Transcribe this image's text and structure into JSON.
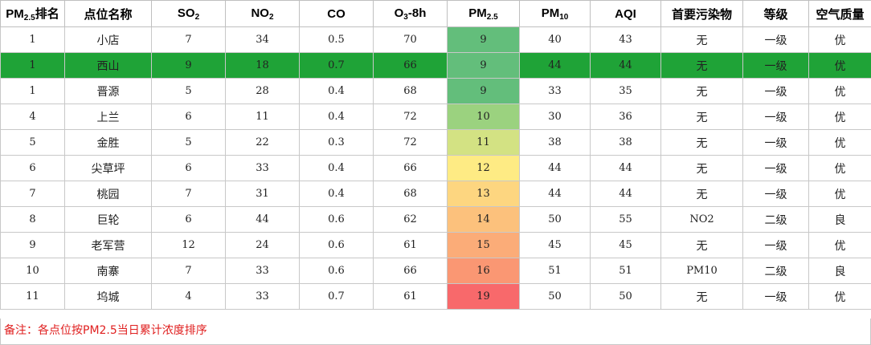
{
  "headers": {
    "rank": {
      "main": "PM",
      "sub": "2.5",
      "rest": "排名"
    },
    "site": "点位名称",
    "so2": {
      "main": "SO",
      "sub": "2"
    },
    "no2": {
      "main": "NO",
      "sub": "2"
    },
    "co": "CO",
    "o3": {
      "main": "O",
      "sub": "3",
      "rest": "-8h"
    },
    "pm25": {
      "main": "PM",
      "sub": "2.5"
    },
    "pm10": {
      "main": "PM",
      "sub": "10"
    },
    "aqi": "AQI",
    "primary": "首要污染物",
    "grade": "等级",
    "quality": "空气质量"
  },
  "rows": [
    {
      "rank": "1",
      "site": "小店",
      "so2": "7",
      "no2": "34",
      "co": "0.5",
      "o3": "70",
      "pm25": "9",
      "pm10": "40",
      "aqi": "43",
      "primary": "无",
      "grade": "一级",
      "quality": "优",
      "pm25_color": "#63be7b"
    },
    {
      "rank": "1",
      "site": "西山",
      "so2": "9",
      "no2": "18",
      "co": "0.7",
      "o3": "66",
      "pm25": "9",
      "pm10": "44",
      "aqi": "44",
      "primary": "无",
      "grade": "一级",
      "quality": "优",
      "pm25_color": "#63be7b",
      "highlight": true
    },
    {
      "rank": "1",
      "site": "晋源",
      "so2": "5",
      "no2": "28",
      "co": "0.4",
      "o3": "68",
      "pm25": "9",
      "pm10": "33",
      "aqi": "35",
      "primary": "无",
      "grade": "一级",
      "quality": "优",
      "pm25_color": "#63be7b"
    },
    {
      "rank": "4",
      "site": "上兰",
      "so2": "6",
      "no2": "11",
      "co": "0.4",
      "o3": "72",
      "pm25": "10",
      "pm10": "30",
      "aqi": "36",
      "primary": "无",
      "grade": "一级",
      "quality": "优",
      "pm25_color": "#9bd27f"
    },
    {
      "rank": "5",
      "site": "金胜",
      "so2": "5",
      "no2": "22",
      "co": "0.3",
      "o3": "72",
      "pm25": "11",
      "pm10": "38",
      "aqi": "38",
      "primary": "无",
      "grade": "一级",
      "quality": "优",
      "pm25_color": "#d3e283"
    },
    {
      "rank": "6",
      "site": "尖草坪",
      "so2": "6",
      "no2": "33",
      "co": "0.4",
      "o3": "66",
      "pm25": "12",
      "pm10": "44",
      "aqi": "44",
      "primary": "无",
      "grade": "一级",
      "quality": "优",
      "pm25_color": "#feeb84"
    },
    {
      "rank": "7",
      "site": "桃园",
      "so2": "7",
      "no2": "31",
      "co": "0.4",
      "o3": "68",
      "pm25": "13",
      "pm10": "44",
      "aqi": "44",
      "primary": "无",
      "grade": "一级",
      "quality": "优",
      "pm25_color": "#fdd680"
    },
    {
      "rank": "8",
      "site": "巨轮",
      "so2": "6",
      "no2": "44",
      "co": "0.6",
      "o3": "62",
      "pm25": "14",
      "pm10": "50",
      "aqi": "55",
      "primary": "NO2",
      "grade": "二级",
      "quality": "良",
      "pm25_color": "#fcc17c"
    },
    {
      "rank": "9",
      "site": "老军营",
      "so2": "12",
      "no2": "24",
      "co": "0.6",
      "o3": "61",
      "pm25": "15",
      "pm10": "45",
      "aqi": "45",
      "primary": "无",
      "grade": "一级",
      "quality": "优",
      "pm25_color": "#fbac78"
    },
    {
      "rank": "10",
      "site": "南寨",
      "so2": "7",
      "no2": "33",
      "co": "0.6",
      "o3": "66",
      "pm25": "16",
      "pm10": "51",
      "aqi": "51",
      "primary": "PM10",
      "grade": "二级",
      "quality": "良",
      "pm25_color": "#fa9773"
    },
    {
      "rank": "11",
      "site": "坞城",
      "so2": "4",
      "no2": "33",
      "co": "0.7",
      "o3": "61",
      "pm25": "19",
      "pm10": "50",
      "aqi": "50",
      "primary": "无",
      "grade": "一级",
      "quality": "优",
      "pm25_color": "#f8696b"
    }
  ],
  "note": "备注：各点位按PM2.5当日累计浓度排序",
  "colors": {
    "highlight_row": "#1fa337",
    "note_text": "#e02020"
  }
}
